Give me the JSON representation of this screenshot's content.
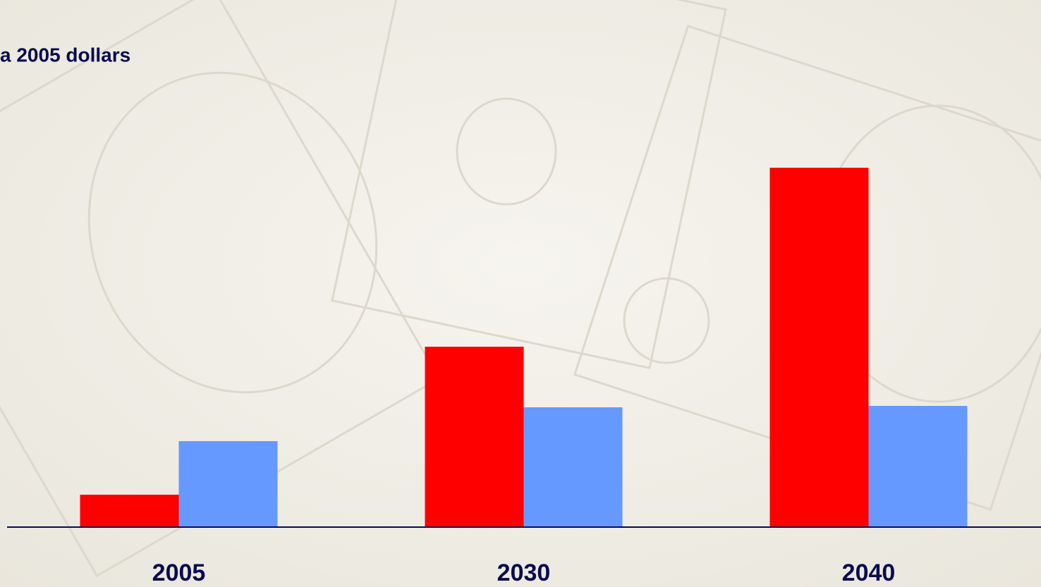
{
  "chart_data": {
    "type": "bar",
    "title": "a 2005 dollars",
    "categories": [
      "2005",
      "2030",
      "2040"
    ],
    "series": [
      {
        "color": "#ff0000",
        "values": [
          46,
          256,
          510
        ]
      },
      {
        "color": "#6699ff",
        "values": [
          122,
          170,
          172
        ]
      }
    ]
  }
}
